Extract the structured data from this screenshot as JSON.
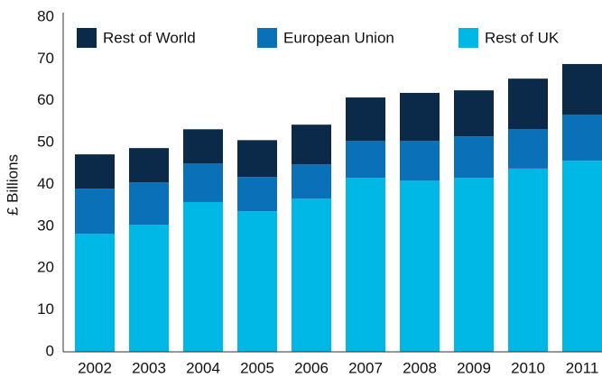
{
  "chart_data": {
    "type": "stacked_bar",
    "y_label": "£ Billions",
    "categories": [
      "2002",
      "2003",
      "2004",
      "2005",
      "2006",
      "2007",
      "2008",
      "2009",
      "2010",
      "2011"
    ],
    "series": [
      {
        "name": "Rest of World",
        "color": "#0b2a4a",
        "values": [
          8.2,
          8.2,
          8.2,
          8.8,
          9.5,
          10.4,
          11.5,
          11.0,
          12.1,
          12.1
        ]
      },
      {
        "name": "European Union",
        "color": "#0a70b8",
        "values": [
          10.8,
          10.1,
          9.2,
          8.2,
          8.2,
          8.8,
          9.5,
          9.9,
          9.4,
          11.0
        ]
      },
      {
        "name": "Rest of UK",
        "color": "#00b8e6",
        "values": [
          28.2,
          30.4,
          35.8,
          33.6,
          36.6,
          41.6,
          40.9,
          41.6,
          43.8,
          45.7
        ]
      }
    ],
    "ylim": [
      0,
      80
    ],
    "yticks": [
      0,
      10,
      20,
      30,
      40,
      50,
      60,
      70,
      80
    ],
    "grid": false,
    "legend": "top"
  }
}
